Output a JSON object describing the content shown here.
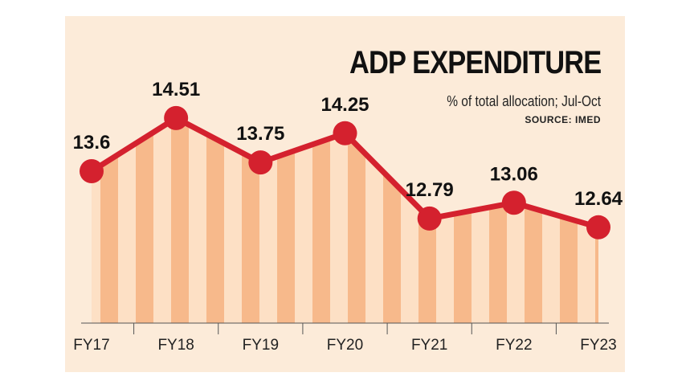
{
  "chart_data": {
    "type": "line",
    "title": "ADP EXPENDITURE",
    "subtitle": "% of total allocation; Jul-Oct",
    "source": "SOURCE: IMED",
    "categories": [
      "FY17",
      "FY18",
      "FY19",
      "FY20",
      "FY21",
      "FY22",
      "FY23"
    ],
    "series": [
      {
        "values": [
          13.6,
          14.51,
          13.75,
          14.25,
          12.79,
          13.06,
          12.64
        ]
      }
    ],
    "value_labels": [
      "13.6",
      "14.51",
      "13.75",
      "14.25",
      "12.79",
      "13.06",
      "12.64"
    ],
    "ylim": [
      11.0,
      15.1
    ],
    "grid": false,
    "colors": {
      "line": "#d4212e",
      "marker": "#d4212e",
      "fill_dark": "#f7b98b",
      "fill_light": "#fde0c5",
      "background": "#fcebd9",
      "axis": "#555555"
    }
  }
}
